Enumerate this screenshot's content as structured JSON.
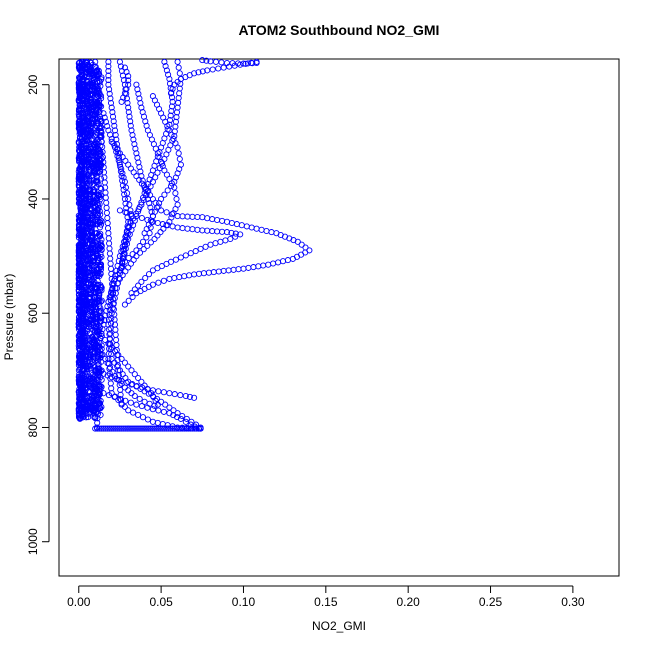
{
  "chart_data": {
    "type": "scatter",
    "title": "ATOM2 Southbound NO2_GMI",
    "xlabel": "NO2_GMI",
    "ylabel": "Pressure (mbar)",
    "xlim": [
      -0.012,
      0.328
    ],
    "ylim": [
      1060,
      155
    ],
    "y_reversed": true,
    "grid": false,
    "x_ticks": [
      "0.00",
      "0.05",
      "0.10",
      "0.15",
      "0.20",
      "0.25",
      "0.30"
    ],
    "x_tick_values": [
      0,
      0.05,
      0.1,
      0.15,
      0.2,
      0.25,
      0.3
    ],
    "y_ticks": [
      "200",
      "400",
      "600",
      "800",
      "1000"
    ],
    "y_tick_values": [
      200,
      400,
      600,
      800,
      1000
    ],
    "marker": "open-circle",
    "color": "#0000ff",
    "series": [
      {
        "points": [
          [
            0.002,
            160
          ],
          [
            0.002,
            200
          ],
          [
            0.002,
            250
          ],
          [
            0.002,
            300
          ],
          [
            0.002,
            350
          ],
          [
            0.002,
            400
          ],
          [
            0.002,
            450
          ],
          [
            0.002,
            500
          ],
          [
            0.002,
            550
          ],
          [
            0.002,
            600
          ],
          [
            0.002,
            650
          ],
          [
            0.002,
            700
          ],
          [
            0.002,
            750
          ],
          [
            0.002,
            780
          ]
        ]
      },
      {
        "points": [
          [
            0.005,
            160
          ],
          [
            0.005,
            220
          ],
          [
            0.006,
            280
          ],
          [
            0.006,
            340
          ],
          [
            0.007,
            400
          ],
          [
            0.008,
            460
          ],
          [
            0.009,
            520
          ],
          [
            0.01,
            580
          ],
          [
            0.011,
            640
          ],
          [
            0.012,
            700
          ],
          [
            0.012,
            760
          ],
          [
            0.011,
            800
          ]
        ]
      },
      {
        "points": [
          [
            0.01,
            160
          ],
          [
            0.012,
            220
          ],
          [
            0.014,
            300
          ],
          [
            0.016,
            380
          ],
          [
            0.018,
            460
          ],
          [
            0.02,
            540
          ],
          [
            0.022,
            620
          ],
          [
            0.024,
            700
          ],
          [
            0.026,
            760
          ]
        ]
      },
      {
        "points": [
          [
            0.052,
            160
          ],
          [
            0.055,
            190
          ],
          [
            0.057,
            230
          ],
          [
            0.055,
            270
          ],
          [
            0.05,
            310
          ],
          [
            0.045,
            350
          ],
          [
            0.04,
            390
          ],
          [
            0.035,
            430
          ],
          [
            0.03,
            470
          ],
          [
            0.025,
            530
          ],
          [
            0.02,
            600
          ],
          [
            0.018,
            680
          ],
          [
            0.02,
            740
          ],
          [
            0.03,
            770
          ],
          [
            0.045,
            790
          ],
          [
            0.06,
            800
          ],
          [
            0.074,
            802
          ]
        ]
      },
      {
        "points": [
          [
            0.06,
            160
          ],
          [
            0.062,
            190
          ],
          [
            0.06,
            240
          ],
          [
            0.058,
            290
          ],
          [
            0.052,
            330
          ],
          [
            0.045,
            370
          ],
          [
            0.038,
            410
          ],
          [
            0.03,
            450
          ],
          [
            0.025,
            500
          ],
          [
            0.02,
            560
          ],
          [
            0.018,
            620
          ],
          [
            0.02,
            680
          ],
          [
            0.03,
            720
          ],
          [
            0.045,
            745
          ],
          [
            0.06,
            775
          ],
          [
            0.074,
            800
          ]
        ]
      },
      {
        "points": [
          [
            0.025,
            160
          ],
          [
            0.028,
            200
          ],
          [
            0.03,
            240
          ],
          [
            0.032,
            280
          ],
          [
            0.035,
            320
          ],
          [
            0.038,
            360
          ],
          [
            0.042,
            400
          ],
          [
            0.045,
            430
          ],
          [
            0.043,
            460
          ],
          [
            0.035,
            490
          ],
          [
            0.028,
            510
          ],
          [
            0.022,
            540
          ],
          [
            0.018,
            580
          ],
          [
            0.015,
            620
          ],
          [
            0.012,
            660
          ]
        ]
      },
      {
        "points": [
          [
            0.035,
            200
          ],
          [
            0.038,
            240
          ],
          [
            0.042,
            280
          ],
          [
            0.048,
            320
          ],
          [
            0.052,
            350
          ],
          [
            0.058,
            380
          ],
          [
            0.06,
            410
          ],
          [
            0.055,
            440
          ],
          [
            0.046,
            470
          ],
          [
            0.035,
            500
          ],
          [
            0.025,
            540
          ],
          [
            0.018,
            580
          ]
        ]
      },
      {
        "points": [
          [
            0.045,
            220
          ],
          [
            0.05,
            250
          ],
          [
            0.055,
            280
          ],
          [
            0.06,
            310
          ],
          [
            0.062,
            340
          ],
          [
            0.058,
            370
          ],
          [
            0.05,
            400
          ],
          [
            0.045,
            430
          ],
          [
            0.04,
            460
          ]
        ]
      },
      {
        "points": [
          [
            0.02,
            300
          ],
          [
            0.025,
            320
          ],
          [
            0.03,
            340
          ],
          [
            0.035,
            360
          ],
          [
            0.04,
            380
          ],
          [
            0.045,
            400
          ],
          [
            0.05,
            420
          ],
          [
            0.06,
            430
          ],
          [
            0.075,
            432
          ],
          [
            0.09,
            440
          ],
          [
            0.105,
            450
          ],
          [
            0.12,
            460
          ],
          [
            0.133,
            475
          ],
          [
            0.14,
            490
          ],
          [
            0.13,
            505
          ],
          [
            0.115,
            515
          ],
          [
            0.1,
            522
          ],
          [
            0.085,
            527
          ],
          [
            0.07,
            532
          ],
          [
            0.055,
            540
          ],
          [
            0.045,
            550
          ],
          [
            0.035,
            565
          ],
          [
            0.028,
            585
          ]
        ]
      },
      {
        "points": [
          [
            0.025,
            420
          ],
          [
            0.035,
            430
          ],
          [
            0.045,
            440
          ],
          [
            0.06,
            450
          ],
          [
            0.075,
            455
          ],
          [
            0.09,
            458
          ],
          [
            0.098,
            462
          ],
          [
            0.092,
            470
          ],
          [
            0.08,
            480
          ],
          [
            0.068,
            495
          ],
          [
            0.056,
            510
          ],
          [
            0.045,
            525
          ],
          [
            0.038,
            545
          ],
          [
            0.032,
            565
          ]
        ]
      },
      {
        "points": [
          [
            0.075,
            157
          ],
          [
            0.08,
            159
          ],
          [
            0.09,
            162
          ],
          [
            0.1,
            163
          ],
          [
            0.108,
            162
          ]
        ]
      },
      {
        "points": [
          [
            0.108,
            160
          ],
          [
            0.098,
            165
          ],
          [
            0.088,
            170
          ],
          [
            0.078,
            175
          ],
          [
            0.07,
            180
          ],
          [
            0.062,
            190
          ],
          [
            0.058,
            200
          ],
          [
            0.056,
            215
          ]
        ]
      },
      {
        "points": [
          [
            0.028,
            170
          ],
          [
            0.03,
            185
          ],
          [
            0.03,
            200
          ],
          [
            0.028,
            215
          ],
          [
            0.026,
            230
          ]
        ]
      },
      {
        "points": [
          [
            0.003,
            600
          ],
          [
            0.008,
            620
          ],
          [
            0.014,
            640
          ],
          [
            0.02,
            660
          ],
          [
            0.026,
            680
          ],
          [
            0.032,
            700
          ],
          [
            0.038,
            720
          ],
          [
            0.044,
            740
          ],
          [
            0.048,
            760
          ]
        ]
      },
      {
        "points": [
          [
            0.004,
            620
          ],
          [
            0.01,
            650
          ],
          [
            0.016,
            680
          ],
          [
            0.022,
            710
          ],
          [
            0.028,
            730
          ],
          [
            0.034,
            745
          ],
          [
            0.04,
            755
          ],
          [
            0.046,
            762
          ]
        ]
      },
      {
        "points": [
          [
            0.002,
            690
          ],
          [
            0.01,
            700
          ],
          [
            0.02,
            712
          ],
          [
            0.032,
            725
          ],
          [
            0.045,
            735
          ],
          [
            0.055,
            740
          ],
          [
            0.065,
            745
          ],
          [
            0.07,
            748
          ]
        ]
      },
      {
        "points": [
          [
            0.008,
            730
          ],
          [
            0.015,
            740
          ],
          [
            0.025,
            750
          ],
          [
            0.035,
            760
          ],
          [
            0.045,
            768
          ],
          [
            0.055,
            775
          ],
          [
            0.062,
            785
          ],
          [
            0.068,
            795
          ],
          [
            0.073,
            802
          ]
        ]
      },
      {
        "points": [
          [
            0.018,
            160
          ],
          [
            0.018,
            200
          ],
          [
            0.02,
            240
          ],
          [
            0.022,
            280
          ],
          [
            0.024,
            320
          ],
          [
            0.026,
            360
          ],
          [
            0.028,
            400
          ],
          [
            0.03,
            440
          ],
          [
            0.028,
            480
          ],
          [
            0.026,
            520
          ]
        ]
      },
      {
        "points": [
          [
            0.015,
            250
          ],
          [
            0.018,
            280
          ],
          [
            0.022,
            310
          ],
          [
            0.025,
            340
          ],
          [
            0.028,
            370
          ],
          [
            0.03,
            400
          ],
          [
            0.032,
            430
          ],
          [
            0.03,
            460
          ],
          [
            0.027,
            490
          ],
          [
            0.026,
            520
          ]
        ]
      }
    ],
    "dense_band": {
      "x_min": 0.0,
      "x_max": 0.014,
      "p_min": 160,
      "p_max": 785
    },
    "bottom_line": {
      "x_from": 0.01,
      "x_to": 0.074,
      "pressure": 802
    }
  }
}
